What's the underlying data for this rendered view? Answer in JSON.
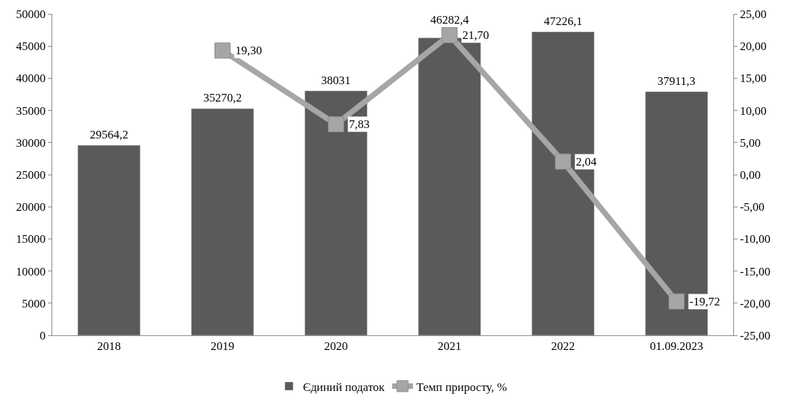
{
  "chart_data": {
    "type": "bar",
    "categories": [
      "2018",
      "2019",
      "2020",
      "2021",
      "2022",
      "01.09.2023"
    ],
    "series": [
      {
        "name": "Єдиний податок",
        "color": "#5a5a5a",
        "values": [
          29564.2,
          35270.2,
          38031,
          46282.4,
          47226.1,
          37911.3
        ],
        "value_labels": [
          "29564,2",
          "35270,2",
          "38031",
          "46282,4",
          "47226,1",
          "37911,3"
        ]
      },
      {
        "name": "Темп приросту, %",
        "type": "line",
        "axis": "y2",
        "color": "#a6a6a6",
        "marker": "square",
        "values": [
          null,
          19.3,
          7.83,
          21.7,
          2.04,
          -19.72
        ],
        "value_labels": [
          null,
          "19,30",
          "7,83",
          "21,70",
          "2,04",
          "-19,72"
        ]
      }
    ],
    "ylim": [
      0,
      50000
    ],
    "yticks": [
      0,
      5000,
      10000,
      15000,
      20000,
      25000,
      30000,
      35000,
      40000,
      45000,
      50000
    ],
    "y2lim": [
      -25,
      25
    ],
    "y2ticks": [
      {
        "value": -25,
        "label": "-25,00"
      },
      {
        "value": -20,
        "label": "-20,00"
      },
      {
        "value": -15,
        "label": "-15,00"
      },
      {
        "value": -10,
        "label": "-10,00"
      },
      {
        "value": -5,
        "label": "-5,00"
      },
      {
        "value": 0,
        "label": "0,00"
      },
      {
        "value": 5,
        "label": "5,00"
      },
      {
        "value": 10,
        "label": "10,00"
      },
      {
        "value": 15,
        "label": "15,00"
      },
      {
        "value": 20,
        "label": "20,00"
      },
      {
        "value": 25,
        "label": "25,00"
      }
    ],
    "legend": "bottom"
  }
}
